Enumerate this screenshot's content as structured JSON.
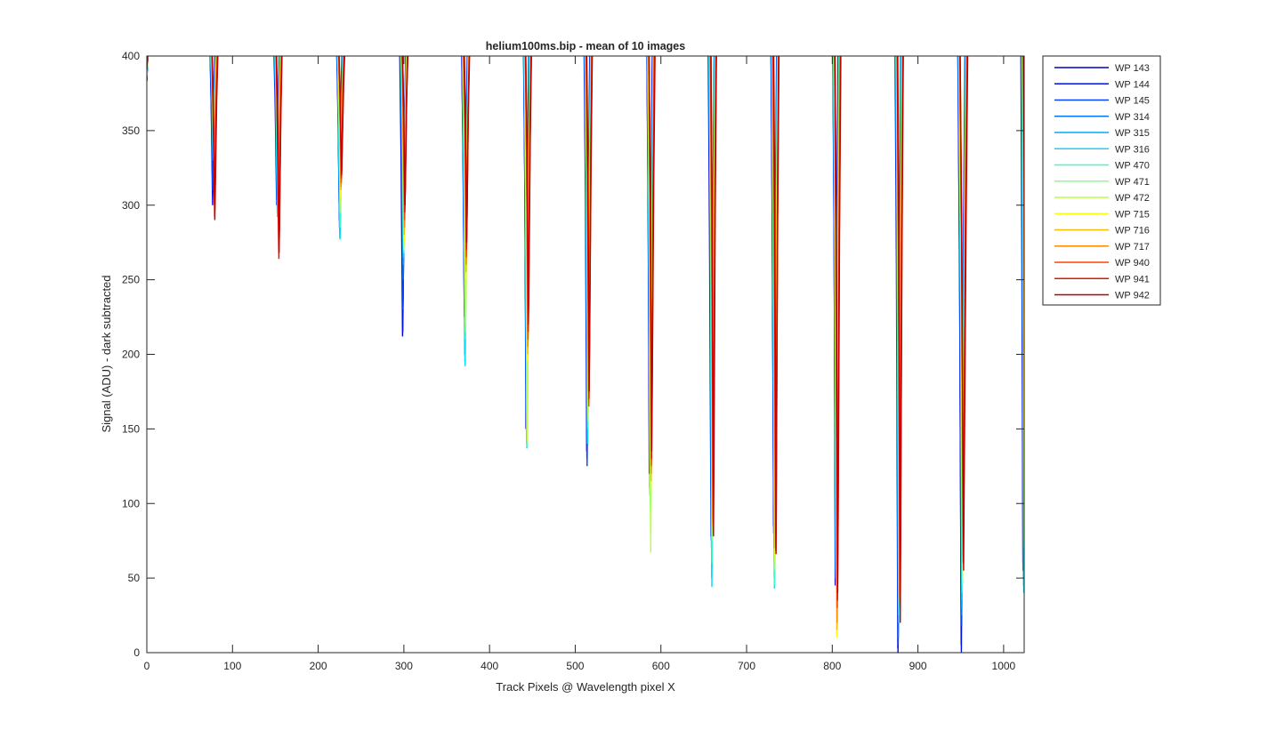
{
  "chart_data": {
    "type": "line",
    "title": "helium100ms.bip - mean of 10 images",
    "xlabel": "Track Pixels @ Wavelength pixel X",
    "ylabel": "Signal (ADU) - dark subtracted",
    "xlim": [
      0,
      1024
    ],
    "ylim": [
      0,
      400
    ],
    "x_ticks": [
      0,
      100,
      200,
      300,
      400,
      500,
      600,
      700,
      800,
      900,
      1000
    ],
    "y_ticks": [
      0,
      50,
      100,
      150,
      200,
      250,
      300,
      350,
      400
    ],
    "grid": false,
    "legend_position": "outside-right",
    "series": [
      {
        "name": "WP 143",
        "color": "#0000cc",
        "center_offset": -1.2,
        "minima": [
          320,
          300,
          300,
          212,
          230,
          150,
          135,
          120,
          78,
          85,
          45,
          3,
          5,
          60
        ]
      },
      {
        "name": "WP 144",
        "color": "#0011ee",
        "center_offset": -1.0,
        "minima": [
          300,
          305,
          290,
          215,
          225,
          160,
          130,
          125,
          80,
          80,
          50,
          0,
          0,
          55
        ]
      },
      {
        "name": "WP 145",
        "color": "#0044ff",
        "center_offset": -0.8,
        "minima": [
          310,
          310,
          285,
          230,
          235,
          165,
          125,
          120,
          75,
          85,
          55,
          5,
          18,
          60
        ]
      },
      {
        "name": "WP 314",
        "color": "#0077ff",
        "center_offset": -0.6,
        "minima": [
          330,
          300,
          282,
          250,
          200,
          145,
          140,
          110,
          70,
          70,
          50,
          10,
          25,
          50
        ]
      },
      {
        "name": "WP 315",
        "color": "#00aaff",
        "center_offset": -0.4,
        "minima": [
          340,
          295,
          278,
          260,
          195,
          140,
          145,
          105,
          50,
          50,
          55,
          20,
          30,
          45
        ]
      },
      {
        "name": "WP 316",
        "color": "#00ddff",
        "center_offset": -0.2,
        "minima": [
          335,
          292,
          277,
          265,
          192,
          137,
          140,
          100,
          44,
          43,
          60,
          25,
          35,
          40
        ]
      },
      {
        "name": "WP 470",
        "color": "#33ffcc",
        "center_offset": 0.0,
        "minima": [
          332,
          310,
          285,
          268,
          210,
          138,
          150,
          95,
          60,
          45,
          45,
          30,
          40,
          70
        ]
      },
      {
        "name": "WP 471",
        "color": "#88ff88",
        "center_offset": 0.2,
        "minima": [
          330,
          320,
          295,
          270,
          215,
          140,
          155,
          80,
          75,
          55,
          30,
          35,
          45,
          75
        ]
      },
      {
        "name": "WP 472",
        "color": "#bbff44",
        "center_offset": 0.4,
        "minima": [
          335,
          325,
          300,
          272,
          220,
          142,
          160,
          67,
          80,
          60,
          12,
          40,
          50,
          80
        ]
      },
      {
        "name": "WP 715",
        "color": "#ffff00",
        "center_offset": 0.6,
        "minima": [
          340,
          330,
          305,
          275,
          250,
          195,
          170,
          110,
          85,
          65,
          10,
          45,
          55,
          85
        ]
      },
      {
        "name": "WP 716",
        "color": "#ffbb00",
        "center_offset": 0.8,
        "minima": [
          335,
          320,
          310,
          280,
          255,
          200,
          175,
          115,
          90,
          70,
          15,
          40,
          60,
          90
        ]
      },
      {
        "name": "WP 717",
        "color": "#ff8800",
        "center_offset": 1.0,
        "minima": [
          330,
          315,
          312,
          285,
          260,
          205,
          168,
          120,
          88,
          72,
          20,
          38,
          62,
          95
        ]
      },
      {
        "name": "WP 940",
        "color": "#ff4400",
        "center_offset": 1.2,
        "minima": [
          300,
          270,
          315,
          290,
          265,
          210,
          165,
          125,
          85,
          70,
          30,
          35,
          65,
          100
        ]
      },
      {
        "name": "WP 941",
        "color": "#ee1100",
        "center_offset": 1.4,
        "minima": [
          292,
          264,
          318,
          295,
          270,
          215,
          170,
          130,
          80,
          68,
          35,
          30,
          60,
          105
        ]
      },
      {
        "name": "WP 942",
        "color": "#bb0000",
        "center_offset": 1.6,
        "minima": [
          290,
          268,
          320,
          300,
          275,
          220,
          175,
          135,
          78,
          66,
          40,
          20,
          55,
          110
        ]
      }
    ],
    "dip_centers": [
      78,
      153,
      226,
      300,
      372,
      444,
      515,
      588,
      660,
      733,
      805,
      878,
      952,
      1024
    ],
    "dip_half_widths": [
      3,
      3,
      3,
      3,
      3,
      3,
      3,
      3,
      3,
      3,
      3,
      3,
      4,
      2
    ]
  }
}
